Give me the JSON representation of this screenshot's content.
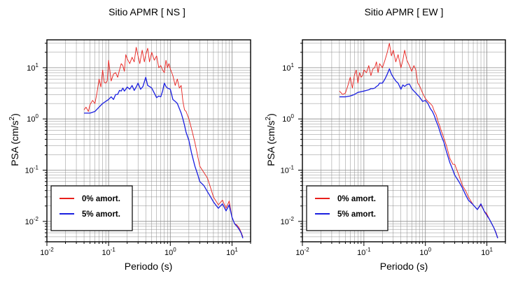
{
  "chart_data": [
    {
      "type": "line",
      "title": "Sitio APMR [ NS ]",
      "xlabel": "Periodo (s)",
      "ylabel_main": "PSA (cm/s",
      "ylabel_sup": "2",
      "ylabel_end": ")",
      "xscale": "log",
      "yscale": "log",
      "xlim": [
        0.01,
        20
      ],
      "ylim": [
        0.004,
        35
      ],
      "grid": true,
      "legend_position": "bottom-left",
      "x_ticks": [
        {
          "base": "10",
          "exp": "-2",
          "value": 0.01
        },
        {
          "base": "10",
          "exp": "-1",
          "value": 0.1
        },
        {
          "base": "10",
          "exp": "0",
          "value": 1
        },
        {
          "base": "10",
          "exp": "1",
          "value": 10
        }
      ],
      "y_ticks": [
        {
          "base": "10",
          "exp": "-2",
          "value": 0.01
        },
        {
          "base": "10",
          "exp": "-1",
          "value": 0.1
        },
        {
          "base": "10",
          "exp": "0",
          "value": 1
        },
        {
          "base": "10",
          "exp": "1",
          "value": 10
        }
      ],
      "series": [
        {
          "name": "0% amort.",
          "color": "#e8201c",
          "x": [
            0.04,
            0.043,
            0.047,
            0.05,
            0.055,
            0.06,
            0.065,
            0.07,
            0.075,
            0.08,
            0.085,
            0.09,
            0.095,
            0.1,
            0.11,
            0.12,
            0.13,
            0.14,
            0.15,
            0.16,
            0.17,
            0.18,
            0.19,
            0.2,
            0.22,
            0.24,
            0.26,
            0.28,
            0.3,
            0.32,
            0.35,
            0.38,
            0.4,
            0.43,
            0.46,
            0.5,
            0.55,
            0.6,
            0.65,
            0.7,
            0.75,
            0.8,
            0.85,
            0.9,
            0.95,
            1.0,
            1.1,
            1.2,
            1.3,
            1.4,
            1.5,
            1.6,
            1.7,
            1.8,
            2.0,
            2.2,
            2.5,
            2.8,
            3.0,
            3.5,
            4.0,
            4.5,
            5.0,
            6.0,
            7.0,
            8.0,
            9.0,
            10,
            11,
            12,
            13,
            14,
            15
          ],
          "y": [
            1.5,
            1.7,
            1.4,
            1.9,
            2.3,
            2.0,
            3.3,
            6.0,
            4.2,
            9.0,
            5.2,
            5.0,
            5.5,
            14.0,
            5.5,
            7.5,
            8.0,
            6.5,
            9.0,
            12.0,
            11.0,
            8.5,
            18.0,
            15.0,
            12.0,
            16.0,
            13.0,
            25.0,
            17.0,
            12.0,
            22.0,
            13.0,
            18.0,
            24.0,
            13.0,
            20.0,
            14.0,
            17.0,
            10.0,
            11.0,
            9.0,
            8.0,
            14.0,
            10.0,
            12.0,
            9.5,
            7.0,
            4.5,
            6.0,
            4.0,
            4.5,
            2.2,
            1.5,
            1.4,
            1.0,
            0.65,
            0.35,
            0.18,
            0.12,
            0.09,
            0.07,
            0.045,
            0.03,
            0.021,
            0.026,
            0.018,
            0.025,
            0.012,
            0.009,
            0.0085,
            0.0075,
            0.0062,
            0.005
          ]
        },
        {
          "name": "5% amort.",
          "color": "#1a1fe0",
          "x": [
            0.04,
            0.05,
            0.06,
            0.07,
            0.08,
            0.09,
            0.1,
            0.11,
            0.12,
            0.13,
            0.14,
            0.15,
            0.16,
            0.17,
            0.18,
            0.19,
            0.2,
            0.22,
            0.24,
            0.26,
            0.28,
            0.3,
            0.33,
            0.36,
            0.4,
            0.43,
            0.46,
            0.5,
            0.55,
            0.6,
            0.65,
            0.7,
            0.75,
            0.8,
            0.85,
            0.9,
            1.0,
            1.1,
            1.2,
            1.3,
            1.4,
            1.5,
            1.6,
            1.7,
            1.8,
            2.0,
            2.2,
            2.5,
            2.8,
            3.0,
            3.5,
            4.0,
            4.5,
            5.0,
            6.0,
            7.0,
            8.0,
            9.0,
            10,
            11,
            12,
            13,
            14,
            15
          ],
          "y": [
            1.3,
            1.3,
            1.4,
            1.7,
            2.0,
            2.2,
            2.4,
            2.7,
            2.4,
            3.0,
            3.0,
            3.6,
            3.5,
            4.0,
            3.5,
            3.8,
            4.2,
            3.8,
            4.5,
            3.6,
            4.2,
            5.0,
            3.8,
            4.3,
            6.5,
            4.5,
            4.3,
            4.0,
            3.2,
            2.6,
            2.8,
            2.7,
            3.5,
            5.0,
            4.3,
            4.0,
            3.8,
            2.4,
            2.2,
            2.0,
            1.6,
            1.3,
            1.0,
            0.75,
            0.55,
            0.38,
            0.22,
            0.12,
            0.08,
            0.06,
            0.05,
            0.038,
            0.03,
            0.024,
            0.018,
            0.022,
            0.016,
            0.021,
            0.012,
            0.009,
            0.008,
            0.007,
            0.006,
            0.0047
          ]
        }
      ]
    },
    {
      "type": "line",
      "title": "Sitio APMR [ EW ]",
      "xlabel": "Periodo (s)",
      "ylabel_main": "PSA (cm/s",
      "ylabel_sup": "2",
      "ylabel_end": ")",
      "xscale": "log",
      "yscale": "log",
      "xlim": [
        0.01,
        20
      ],
      "ylim": [
        0.004,
        35
      ],
      "grid": true,
      "legend_position": "bottom-left",
      "x_ticks": [
        {
          "base": "10",
          "exp": "-2",
          "value": 0.01
        },
        {
          "base": "10",
          "exp": "-1",
          "value": 0.1
        },
        {
          "base": "10",
          "exp": "0",
          "value": 1
        },
        {
          "base": "10",
          "exp": "1",
          "value": 10
        }
      ],
      "y_ticks": [
        {
          "base": "10",
          "exp": "-2",
          "value": 0.01
        },
        {
          "base": "10",
          "exp": "-1",
          "value": 0.1
        },
        {
          "base": "10",
          "exp": "0",
          "value": 1
        },
        {
          "base": "10",
          "exp": "1",
          "value": 10
        }
      ],
      "series": [
        {
          "name": "0% amort.",
          "color": "#e8201c",
          "x": [
            0.04,
            0.045,
            0.05,
            0.055,
            0.06,
            0.065,
            0.07,
            0.075,
            0.08,
            0.085,
            0.09,
            0.095,
            0.1,
            0.11,
            0.12,
            0.13,
            0.14,
            0.15,
            0.16,
            0.17,
            0.18,
            0.2,
            0.22,
            0.24,
            0.26,
            0.28,
            0.3,
            0.33,
            0.36,
            0.4,
            0.43,
            0.46,
            0.5,
            0.55,
            0.6,
            0.65,
            0.7,
            0.75,
            0.8,
            0.9,
            1.0,
            1.1,
            1.2,
            1.3,
            1.4,
            1.5,
            1.6,
            1.7,
            1.8,
            2.0,
            2.2,
            2.5,
            2.8,
            3.0,
            3.5,
            4.0,
            4.5,
            5.0,
            6.0,
            7.0,
            8.0,
            9.0,
            10,
            11,
            12,
            13,
            14,
            15
          ],
          "y": [
            3.5,
            3.0,
            3.2,
            4.5,
            6.5,
            4.0,
            7.0,
            9.0,
            5.0,
            8.0,
            6.5,
            7.0,
            9.0,
            8.0,
            11.0,
            7.0,
            9.5,
            10.0,
            13.0,
            8.0,
            12.0,
            10.0,
            14.0,
            20.0,
            30.0,
            17.0,
            22.0,
            13.0,
            18.0,
            10.0,
            14.0,
            22.0,
            14.0,
            11.0,
            8.5,
            11.0,
            9.0,
            5.0,
            4.5,
            3.2,
            2.5,
            2.2,
            2.0,
            1.8,
            1.4,
            1.2,
            0.9,
            0.75,
            0.6,
            0.42,
            0.3,
            0.17,
            0.13,
            0.13,
            0.08,
            0.05,
            0.04,
            0.03,
            0.021,
            0.017,
            0.021,
            0.016,
            0.014,
            0.011,
            0.009,
            0.0075,
            0.0062,
            0.0048
          ]
        },
        {
          "name": "5% amort.",
          "color": "#1a1fe0",
          "x": [
            0.04,
            0.05,
            0.06,
            0.07,
            0.08,
            0.09,
            0.1,
            0.11,
            0.12,
            0.13,
            0.14,
            0.15,
            0.16,
            0.17,
            0.18,
            0.2,
            0.22,
            0.24,
            0.26,
            0.28,
            0.3,
            0.33,
            0.36,
            0.4,
            0.43,
            0.46,
            0.5,
            0.55,
            0.6,
            0.65,
            0.7,
            0.75,
            0.8,
            0.9,
            1.0,
            1.1,
            1.2,
            1.3,
            1.4,
            1.5,
            1.6,
            1.7,
            1.8,
            2.0,
            2.2,
            2.5,
            2.8,
            3.0,
            3.5,
            4.0,
            4.5,
            5.0,
            6.0,
            7.0,
            8.0,
            9.0,
            10,
            11,
            12,
            13,
            14,
            15
          ],
          "y": [
            2.7,
            2.7,
            2.8,
            3.0,
            3.3,
            3.4,
            3.5,
            3.6,
            3.7,
            3.9,
            3.9,
            4.0,
            4.3,
            4.5,
            5.0,
            5.0,
            6.0,
            7.5,
            9.5,
            7.5,
            6.5,
            5.5,
            5.0,
            3.8,
            4.6,
            4.3,
            4.7,
            4.8,
            3.9,
            3.5,
            3.2,
            2.9,
            2.7,
            2.2,
            2.3,
            2.0,
            1.6,
            1.4,
            1.15,
            0.9,
            0.75,
            0.6,
            0.48,
            0.35,
            0.23,
            0.14,
            0.1,
            0.08,
            0.06,
            0.045,
            0.033,
            0.026,
            0.021,
            0.017,
            0.022,
            0.016,
            0.013,
            0.011,
            0.009,
            0.0075,
            0.006,
            0.0047
          ]
        }
      ]
    }
  ]
}
